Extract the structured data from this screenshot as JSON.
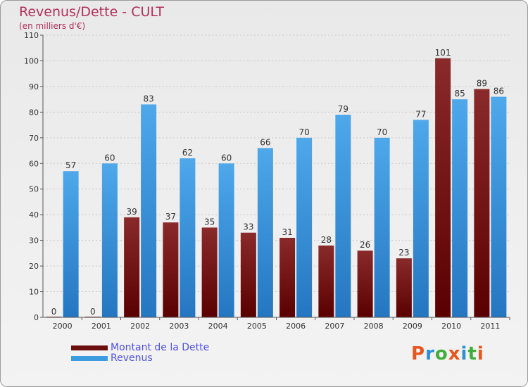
{
  "header": {
    "title": "Revenus/Dette - CULT",
    "subtitle": "(en milliers d'€)"
  },
  "colors": {
    "title": "#b0305a",
    "dette": "#7a1a1a",
    "revenus": "#3399dd",
    "legend_text": "#5050e6"
  },
  "legend": {
    "items": [
      {
        "label": "Montant de la Dette",
        "color": "#6b0e0e"
      },
      {
        "label": "Revenus",
        "color": "#3d9be0"
      }
    ]
  },
  "logo": {
    "text": "Proxiti",
    "letter_colors": [
      "#e8551d",
      "#2b8fd6",
      "#3fae3a",
      "#e8551d",
      "#2b8fd6",
      "#3fae3a",
      "#e8551d"
    ]
  },
  "chart_data": {
    "type": "bar",
    "categories": [
      "2000",
      "2001",
      "2002",
      "2003",
      "2004",
      "2005",
      "2006",
      "2007",
      "2008",
      "2009",
      "2010",
      "2011"
    ],
    "series": [
      {
        "name": "Montant de la Dette",
        "values": [
          0,
          0,
          39,
          37,
          35,
          33,
          31,
          28,
          26,
          23,
          101,
          89
        ]
      },
      {
        "name": "Revenus",
        "values": [
          57,
          60,
          83,
          62,
          60,
          66,
          70,
          79,
          70,
          77,
          85,
          86
        ]
      }
    ],
    "title": "Revenus/Dette - CULT",
    "subtitle": "(en milliers d'€)",
    "xlabel": "",
    "ylabel": "",
    "ylim": [
      0,
      110
    ],
    "yticks": [
      0,
      10,
      20,
      30,
      40,
      50,
      60,
      70,
      80,
      90,
      100,
      110
    ],
    "grid": true,
    "legend_position": "bottom-left"
  }
}
